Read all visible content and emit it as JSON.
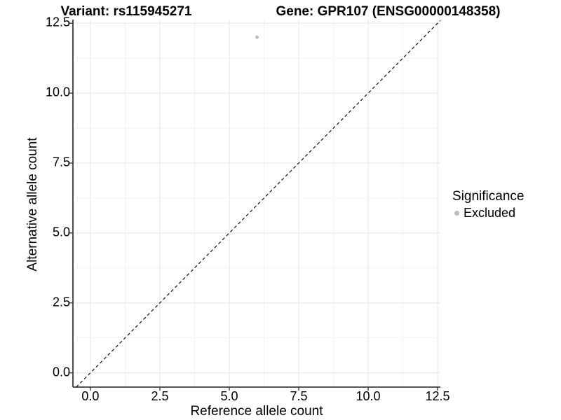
{
  "title": {
    "variant": "Variant: rs115945271",
    "gene": "Gene: GPR107 (ENSG00000148358)"
  },
  "chart_data": {
    "type": "scatter",
    "title": "Variant: rs115945271    Gene: GPR107 (ENSG00000148358)",
    "xlabel": "Reference allele count",
    "ylabel": "Alternative allele count",
    "xlim": [
      -0.63,
      12.6
    ],
    "ylim": [
      -0.51,
      12.63
    ],
    "x_ticks": {
      "values": [
        0,
        2.5,
        5,
        7.5,
        10,
        12.5
      ],
      "labels": [
        "0.0",
        "2.5",
        "5.0",
        "7.5",
        "10.0",
        "12.5"
      ]
    },
    "y_ticks": {
      "values": [
        0,
        2.5,
        5,
        7.5,
        10,
        12.5
      ],
      "labels": [
        "0.0",
        "2.5",
        "5.0",
        "7.5",
        "10.0",
        "12.5"
      ]
    },
    "x_minor_ticks": [
      1.25,
      3.75,
      6.25,
      8.75,
      11.25
    ],
    "y_minor_ticks": [
      1.25,
      3.75,
      6.25,
      8.75,
      11.25
    ],
    "grid": true,
    "series": [
      {
        "name": "Excluded",
        "color": "#bebebe",
        "points": [
          {
            "x": 6,
            "y": 12
          }
        ]
      }
    ],
    "reference_line": {
      "type": "abline",
      "slope": 1,
      "intercept": 0,
      "style": "dashed",
      "color": "#111111"
    },
    "legend": {
      "title": "Significance",
      "position": "right",
      "items": [
        {
          "label": "Excluded",
          "color": "#bebebe"
        }
      ]
    }
  },
  "colors": {
    "background": "#ffffff",
    "axis": "#3c3c3c",
    "grid_major": "#e9e9e9",
    "grid_minor": "#f3f3f3",
    "point": "#bebebe",
    "text": "#000000"
  }
}
